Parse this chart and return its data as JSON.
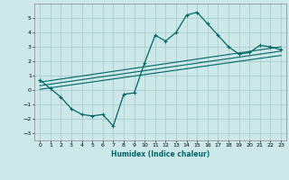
{
  "xlabel": "Humidex (Indice chaleur)",
  "bg_color": "#cce8e8",
  "grid_color": "#aacccc",
  "line_color": "#006666",
  "xlim": [
    -0.5,
    23.5
  ],
  "ylim": [
    -3.5,
    6.0
  ],
  "xticks": [
    0,
    1,
    2,
    3,
    4,
    5,
    6,
    7,
    8,
    9,
    10,
    11,
    12,
    13,
    14,
    15,
    16,
    17,
    18,
    19,
    20,
    21,
    22,
    23
  ],
  "yticks": [
    -3,
    -2,
    -1,
    0,
    1,
    2,
    3,
    4,
    5
  ],
  "main_x": [
    0,
    1,
    2,
    3,
    4,
    5,
    6,
    7,
    8,
    9,
    10,
    11,
    12,
    13,
    14,
    15,
    16,
    17,
    18,
    19,
    20,
    21,
    22,
    23
  ],
  "main_y": [
    0.7,
    0.1,
    -0.5,
    -1.3,
    -1.7,
    -1.8,
    -1.7,
    -2.5,
    -0.3,
    -0.2,
    1.9,
    3.8,
    3.4,
    4.0,
    5.2,
    5.4,
    4.6,
    3.8,
    3.0,
    2.5,
    2.6,
    3.1,
    3.0,
    2.8
  ],
  "line1_x": [
    0,
    23
  ],
  "line1_y": [
    0.55,
    3.0
  ],
  "line2_x": [
    0,
    23
  ],
  "line2_y": [
    0.3,
    2.7
  ],
  "line3_x": [
    0,
    23
  ],
  "line3_y": [
    0.05,
    2.4
  ]
}
